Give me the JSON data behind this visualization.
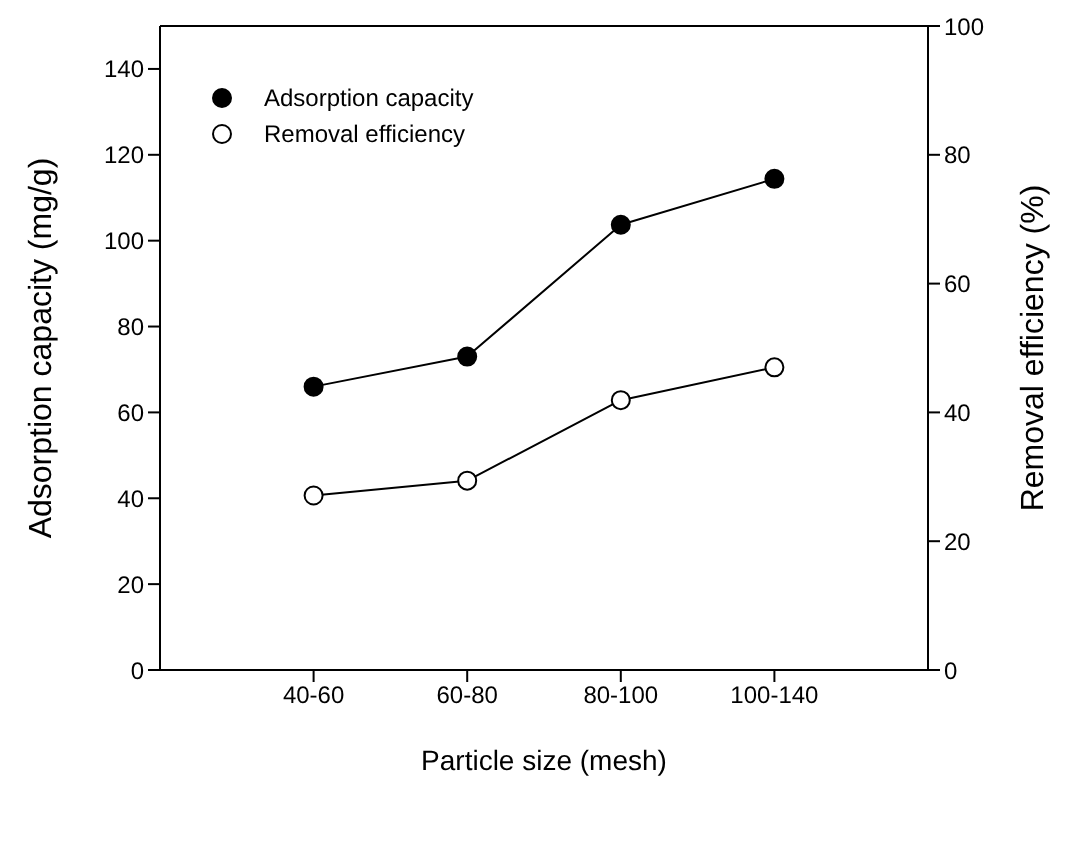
{
  "chart_data": {
    "type": "line",
    "xlabel": "Particle size (mesh)",
    "ylabel": "Adsorption capacity (mg/g)",
    "y2label": "Removal efficiency (%)",
    "categories": [
      "40-60",
      "60-80",
      "80-100",
      "100-140"
    ],
    "series": [
      {
        "name": "Adsorption capacity",
        "color": "#000000",
        "values": [
          66,
          73,
          103.7,
          114.4
        ]
      },
      {
        "name": "Removal efficiency",
        "color": "#ffffff",
        "axis": "y2",
        "values": [
          27.1,
          29.4,
          41.9,
          47
        ]
      }
    ],
    "ylim": [
      0,
      150
    ],
    "yticks": [
      0,
      20,
      40,
      60,
      80,
      100,
      120,
      140
    ],
    "y2lim": [
      0,
      100
    ],
    "y2ticks": [
      0,
      20,
      40,
      60,
      80,
      100
    ],
    "legend": "top left",
    "marker": "circle",
    "line_style": "solid",
    "grid": false
  }
}
